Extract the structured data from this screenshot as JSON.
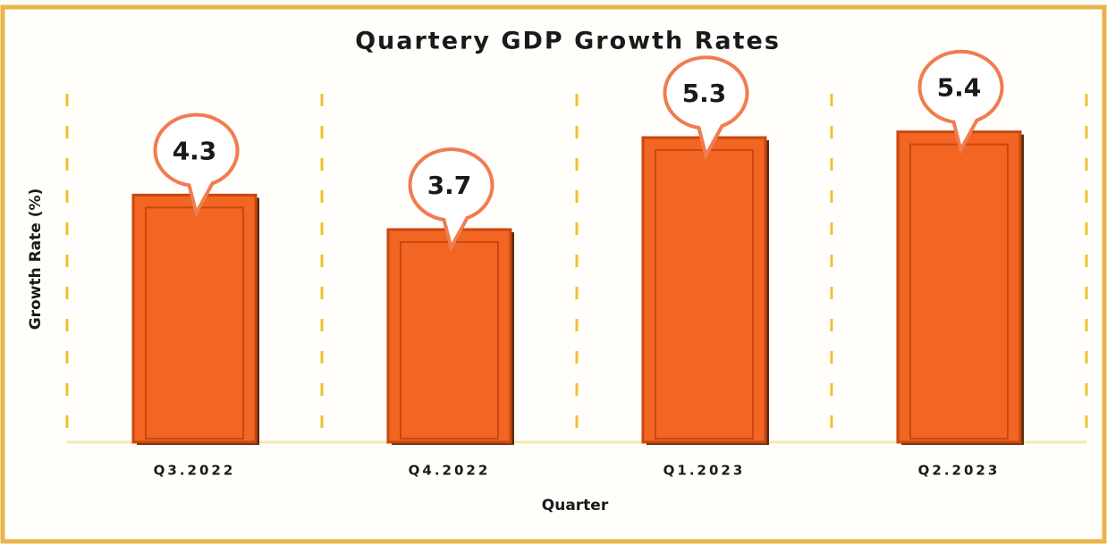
{
  "chart_data": {
    "type": "bar",
    "title": "Quartery GDP Growth Rates",
    "x_label": "Quarter",
    "y_label": "Growth Rate (%)",
    "categories": [
      "Q3.2022",
      "Q4.2022",
      "Q1.2023",
      "Q2.2023"
    ],
    "values": [
      4.3,
      3.7,
      5.3,
      5.4
    ],
    "color": "#f26522",
    "ylim": [
      0,
      6
    ]
  }
}
